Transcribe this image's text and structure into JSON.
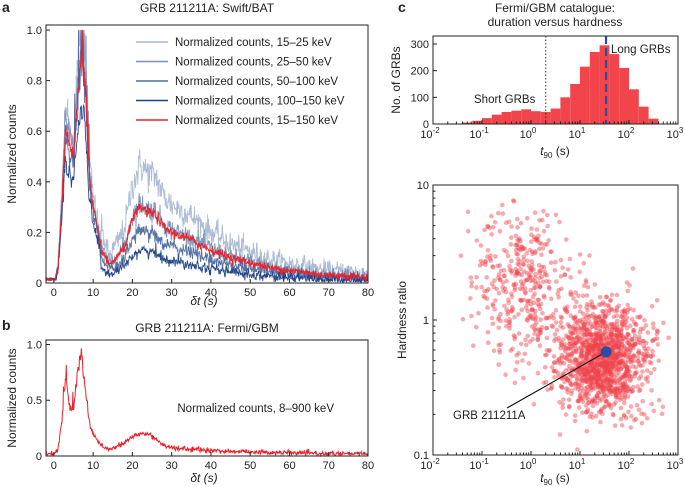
{
  "chart_data": [
    {
      "id": "a",
      "panel_letter": "a",
      "type": "line",
      "title": "GRB 211211A: Swift/BAT",
      "xlabel": "δt (s)",
      "ylabel": "Normalized counts",
      "xlim": [
        -2,
        80
      ],
      "ylim": [
        0,
        1.02
      ],
      "xticks": [
        0,
        10,
        20,
        30,
        40,
        50,
        60,
        70,
        80
      ],
      "yticks": [
        0,
        0.2,
        0.4,
        0.6,
        0.8,
        1.0
      ],
      "ytick_labels": [
        "0",
        "0.2",
        "0.4",
        "0.6",
        "0.8",
        "1.0"
      ],
      "legend_position": "top-right",
      "series": [
        {
          "name": "Normalized counts, 15–25 keV",
          "color": "#a9b9d2"
        },
        {
          "name": "Normalized counts, 25–50 keV",
          "color": "#7b93ba"
        },
        {
          "name": "Normalized counts, 50–100 keV",
          "color": "#4d6b9f"
        },
        {
          "name": "Normalized counts, 100–150 keV",
          "color": "#1d3f86"
        },
        {
          "name": "Normalized counts, 15–150 keV",
          "color": "#e8202a"
        }
      ],
      "profile": {
        "t": [
          -2,
          0,
          1,
          2,
          3,
          4,
          5,
          6,
          7,
          8,
          9,
          10,
          11,
          12,
          14,
          16,
          18,
          20,
          22,
          24,
          26,
          28,
          30,
          35,
          40,
          45,
          50,
          55,
          60,
          65,
          70,
          75,
          80
        ],
        "v": [
          0,
          0,
          0.05,
          0.3,
          0.62,
          0.55,
          0.5,
          0.72,
          0.9,
          0.78,
          0.42,
          0.3,
          0.22,
          0.14,
          0.07,
          0.1,
          0.14,
          0.25,
          0.3,
          0.28,
          0.27,
          0.22,
          0.2,
          0.17,
          0.13,
          0.1,
          0.08,
          0.06,
          0.05,
          0.04,
          0.03,
          0.03,
          0.02
        ]
      }
    },
    {
      "id": "b",
      "panel_letter": "b",
      "type": "line",
      "title": "GRB 211211A: Fermi/GBM",
      "xlabel": "δt (s)",
      "ylabel": "Normalized counts",
      "xlim": [
        -2,
        80
      ],
      "ylim": [
        0,
        1.04
      ],
      "xticks": [
        0,
        10,
        20,
        30,
        40,
        50,
        60,
        70,
        80
      ],
      "yticks": [
        0,
        0.5,
        1.0
      ],
      "ytick_labels": [
        "0",
        "0.5",
        "1.0"
      ],
      "series": [
        {
          "name": "Normalized counts, 8–900 keV",
          "color": "#e8202a"
        }
      ],
      "profile": {
        "t": [
          -2,
          0,
          1,
          2,
          3,
          4,
          5,
          6,
          7,
          8,
          9,
          10,
          12,
          14,
          16,
          18,
          20,
          22,
          24,
          26,
          28,
          30,
          35,
          40,
          45,
          50,
          55,
          60,
          70,
          80
        ],
        "v": [
          0.02,
          0.02,
          0.05,
          0.3,
          0.7,
          0.45,
          0.4,
          0.75,
          0.92,
          0.6,
          0.3,
          0.2,
          0.1,
          0.06,
          0.08,
          0.12,
          0.17,
          0.2,
          0.2,
          0.15,
          0.1,
          0.07,
          0.06,
          0.05,
          0.04,
          0.04,
          0.03,
          0.03,
          0.02,
          0.02
        ]
      }
    },
    {
      "id": "c-hist",
      "panel_letter": "c",
      "type": "bar",
      "title": "Fermi/GBM catalogue:",
      "subtitle": "duration versus hardness",
      "xlabel": "t90 (s)",
      "ylabel": "No. of GRBs",
      "xscale": "log",
      "xlim": [
        0.01,
        1000
      ],
      "ylim": [
        0,
        330
      ],
      "xtick_exponents": [
        -2,
        -1,
        0,
        1,
        2,
        3
      ],
      "yticks": [
        0,
        100,
        200,
        300
      ],
      "bar_color": "#f2444b",
      "bin_edges_log10": [
        -1.6,
        -1.4,
        -1.2,
        -1.0,
        -0.8,
        -0.6,
        -0.4,
        -0.2,
        0.0,
        0.2,
        0.4,
        0.6,
        0.8,
        1.0,
        1.2,
        1.4,
        1.6,
        1.8,
        2.0,
        2.2,
        2.4,
        2.6
      ],
      "counts": [
        2,
        5,
        12,
        22,
        35,
        45,
        50,
        55,
        48,
        45,
        58,
        100,
        150,
        215,
        270,
        295,
        262,
        210,
        130,
        65,
        20
      ],
      "short_long_boundary_s": 2,
      "grb_211211a_t90_s": 34,
      "annotations": {
        "short": "Short GRBs",
        "long": "Long GRBs"
      }
    },
    {
      "id": "c-scatter",
      "type": "scatter",
      "xlabel": "t90 (s)",
      "ylabel": "Hardness ratio",
      "xscale": "log",
      "yscale": "log",
      "xlim": [
        0.01,
        1000
      ],
      "ylim": [
        0.1,
        10
      ],
      "xtick_exponents": [
        -2,
        -1,
        0,
        1,
        2,
        3
      ],
      "ytick_values": [
        0.1,
        1,
        10
      ],
      "ytick_labels": [
        "0.1",
        "1",
        "10"
      ],
      "point_color": "#f0434b",
      "highlight": {
        "label": "GRB 211211A",
        "t90_s": 34,
        "hardness": 0.58,
        "color": "#2a4e9c"
      }
    }
  ]
}
